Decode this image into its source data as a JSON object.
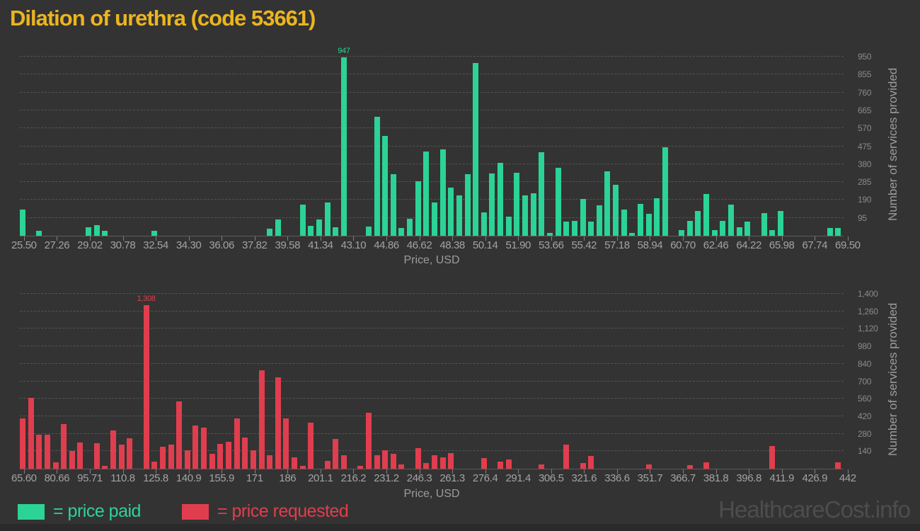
{
  "title": "Dilation of urethra (code 53661)",
  "watermark": "HealthcareCost.info",
  "colors": {
    "background": "#333333",
    "footer_strip": "#2a2a2a",
    "title": "#ecb51e",
    "price_paid": "#2bd396",
    "price_requested": "#e03e4e",
    "gridline": "#545454",
    "tick_label": "#a3a3a3",
    "axis_title": "#9c9c9c",
    "watermark": "#4d4d4d"
  },
  "legend": [
    {
      "series": "price paid",
      "label": "= price paid",
      "color": "#2bd396"
    },
    {
      "series": "price requested",
      "label": "= price requested",
      "color": "#e03e4e"
    }
  ],
  "chart_data": [
    {
      "type": "bar",
      "name": "price paid",
      "color": "#2bd396",
      "xlabel": "Price, USD",
      "ylabel": "Number of services provided",
      "grid": "dashed",
      "legend_position": "bottom",
      "bin_start": 25.5,
      "bin_width": 0.44,
      "xlim": [
        25.5,
        69.5
      ],
      "ylim": [
        0,
        950
      ],
      "x_tick_labels": [
        "25.50",
        "27.26",
        "29.02",
        "30.78",
        "32.54",
        "34.30",
        "36.06",
        "37.82",
        "39.58",
        "41.34",
        "43.10",
        "44.86",
        "46.62",
        "48.38",
        "50.14",
        "51.90",
        "53.66",
        "55.42",
        "57.18",
        "58.94",
        "60.70",
        "62.46",
        "64.22",
        "65.98",
        "67.74",
        "69.50"
      ],
      "y_ticks": [
        95,
        190,
        285,
        380,
        475,
        570,
        665,
        760,
        855,
        950
      ],
      "y_tick_labels": [
        "95",
        "190",
        "285",
        "380",
        "475",
        "570",
        "665",
        "760",
        "855",
        "950"
      ],
      "max_label": "947",
      "values": [
        140,
        0,
        25,
        0,
        0,
        0,
        0,
        0,
        45,
        55,
        25,
        0,
        0,
        0,
        0,
        0,
        27,
        0,
        0,
        0,
        0,
        0,
        0,
        0,
        0,
        0,
        0,
        0,
        0,
        0,
        38,
        86,
        0,
        0,
        165,
        54,
        86,
        177,
        44,
        947,
        0,
        0,
        50,
        630,
        530,
        325,
        42,
        89,
        291,
        447,
        177,
        460,
        255,
        215,
        325,
        915,
        125,
        330,
        385,
        100,
        335,
        215,
        225,
        445,
        15,
        360,
        75,
        80,
        195,
        75,
        160,
        340,
        270,
        140,
        15,
        170,
        115,
        200,
        470,
        0,
        30,
        80,
        130,
        220,
        30,
        80,
        165,
        45,
        75,
        0,
        120,
        30,
        130,
        0,
        0,
        0,
        0,
        0,
        40,
        40
      ]
    },
    {
      "type": "bar",
      "name": "price requested",
      "color": "#e03e4e",
      "xlabel": "Price, USD",
      "ylabel": "Number of services provided",
      "grid": "dashed",
      "legend_position": "bottom",
      "bin_start": 65.6,
      "bin_width": 3.764,
      "xlim": [
        65.6,
        442
      ],
      "ylim": [
        0,
        1400
      ],
      "x_tick_labels": [
        "65.60",
        "80.66",
        "95.71",
        "110.8",
        "125.8",
        "140.9",
        "155.9",
        "171",
        "186",
        "201.1",
        "216.2",
        "231.2",
        "246.3",
        "261.3",
        "276.4",
        "291.4",
        "306.5",
        "321.6",
        "336.6",
        "351.7",
        "366.7",
        "381.8",
        "396.8",
        "411.9",
        "426.9",
        "442"
      ],
      "y_ticks": [
        140,
        280,
        420,
        560,
        700,
        840,
        980,
        1120,
        1260,
        1400
      ],
      "y_tick_labels": [
        "140",
        "280",
        "420",
        "560",
        "700",
        "840",
        "980",
        "1,120",
        "1,260",
        "1,400"
      ],
      "max_label": "1,308",
      "values": [
        400,
        565,
        270,
        270,
        50,
        355,
        140,
        210,
        0,
        205,
        25,
        305,
        190,
        245,
        0,
        1308,
        55,
        175,
        195,
        540,
        150,
        345,
        330,
        120,
        200,
        215,
        405,
        250,
        145,
        790,
        105,
        730,
        405,
        90,
        20,
        370,
        0,
        63,
        240,
        110,
        0,
        25,
        450,
        110,
        150,
        120,
        35,
        0,
        165,
        45,
        110,
        90,
        125,
        0,
        0,
        0,
        85,
        0,
        55,
        75,
        0,
        0,
        0,
        35,
        0,
        0,
        195,
        0,
        45,
        100,
        0,
        0,
        0,
        0,
        0,
        0,
        35,
        0,
        0,
        0,
        0,
        30,
        0,
        50,
        0,
        0,
        0,
        0,
        0,
        0,
        0,
        180,
        0,
        0,
        0,
        0,
        0,
        0,
        0,
        50
      ]
    }
  ]
}
